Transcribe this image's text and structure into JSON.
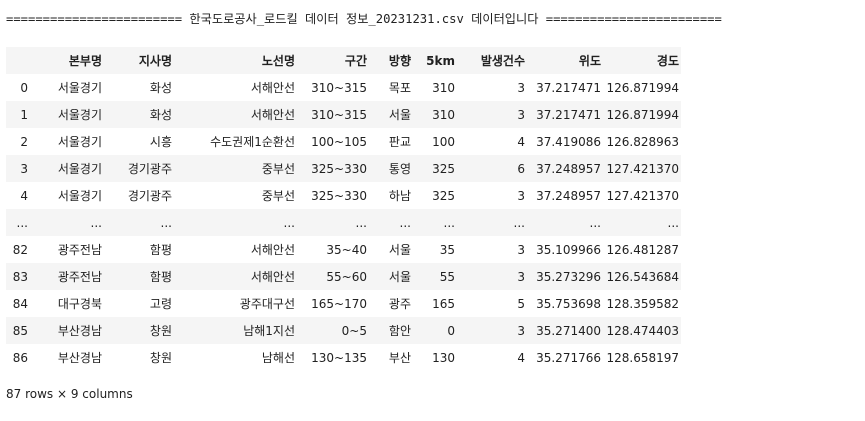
{
  "banner": "======================== 한국도로공사_로드킬 데이터 정보_20231231.csv 데이터입니다 ========================",
  "table": {
    "columns": [
      "",
      "본부명",
      "지사명",
      "노선명",
      "구간",
      "방향",
      "5km",
      "발생건수",
      "위도",
      "경도"
    ],
    "rows": [
      [
        "0",
        "서울경기",
        "화성",
        "서해안선",
        "310~315",
        "목포",
        "310",
        "3",
        "37.217471",
        "126.871994"
      ],
      [
        "1",
        "서울경기",
        "화성",
        "서해안선",
        "310~315",
        "서울",
        "310",
        "3",
        "37.217471",
        "126.871994"
      ],
      [
        "2",
        "서울경기",
        "시흥",
        "수도권제1순환선",
        "100~105",
        "판교",
        "100",
        "4",
        "37.419086",
        "126.828963"
      ],
      [
        "3",
        "서울경기",
        "경기광주",
        "중부선",
        "325~330",
        "통영",
        "325",
        "6",
        "37.248957",
        "127.421370"
      ],
      [
        "4",
        "서울경기",
        "경기광주",
        "중부선",
        "325~330",
        "하남",
        "325",
        "3",
        "37.248957",
        "127.421370"
      ],
      [
        "...",
        "...",
        "...",
        "...",
        "...",
        "...",
        "...",
        "...",
        "...",
        "..."
      ],
      [
        "82",
        "광주전남",
        "함평",
        "서해안선",
        "35~40",
        "서울",
        "35",
        "3",
        "35.109966",
        "126.481287"
      ],
      [
        "83",
        "광주전남",
        "함평",
        "서해안선",
        "55~60",
        "서울",
        "55",
        "3",
        "35.273296",
        "126.543684"
      ],
      [
        "84",
        "대구경북",
        "고령",
        "광주대구선",
        "165~170",
        "광주",
        "165",
        "5",
        "35.753698",
        "128.359582"
      ],
      [
        "85",
        "부산경남",
        "창원",
        "남해1지선",
        "0~5",
        "함안",
        "0",
        "3",
        "35.271400",
        "128.474403"
      ],
      [
        "86",
        "부산경남",
        "창원",
        "남해선",
        "130~135",
        "부산",
        "130",
        "4",
        "35.271766",
        "128.658197"
      ]
    ]
  },
  "footer": "87 rows × 9 columns"
}
